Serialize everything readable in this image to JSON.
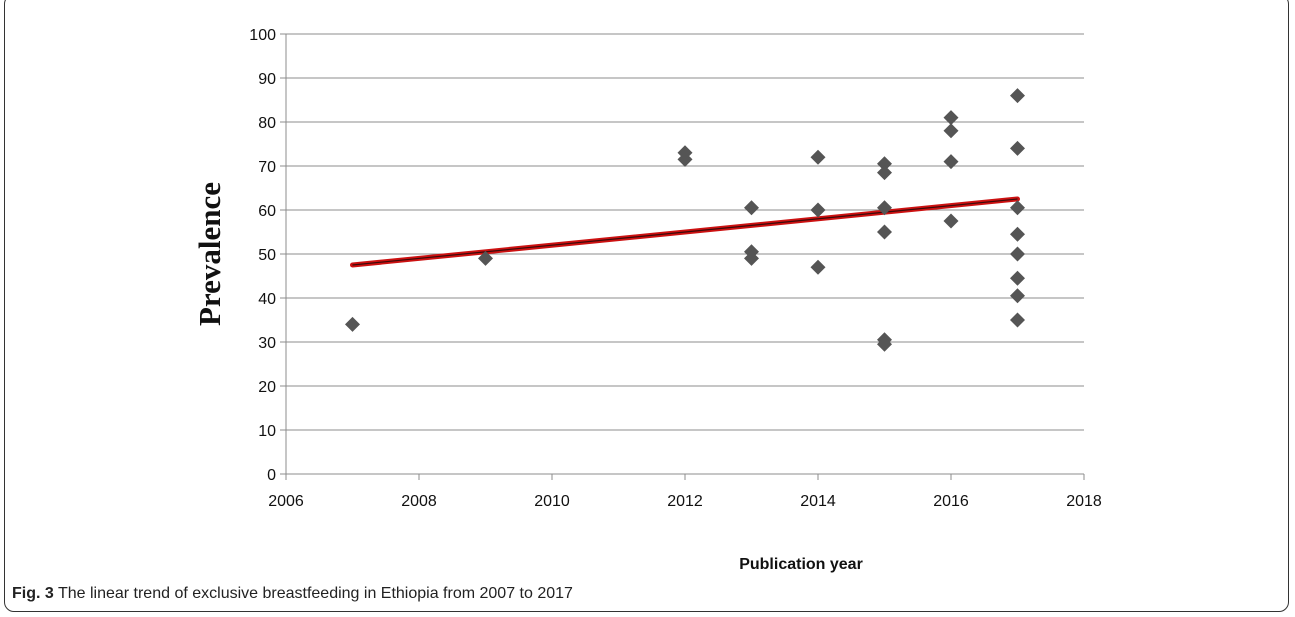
{
  "chart_data": {
    "type": "scatter",
    "xlabel": "Publication year",
    "ylabel": "Prevalence",
    "xlim": [
      2006,
      2018
    ],
    "ylim": [
      0,
      100
    ],
    "x_ticks": [
      2006,
      2008,
      2010,
      2012,
      2014,
      2016,
      2018
    ],
    "y_ticks": [
      0,
      10,
      20,
      30,
      40,
      50,
      60,
      70,
      80,
      90,
      100
    ],
    "grid": "horizontal",
    "legend": "none",
    "marker": "diamond",
    "marker_color": "#555555",
    "trendline_color": "#cc1111",
    "points": [
      {
        "x": 2007,
        "y": 34
      },
      {
        "x": 2009,
        "y": 49
      },
      {
        "x": 2012,
        "y": 73
      },
      {
        "x": 2012,
        "y": 71.5
      },
      {
        "x": 2013,
        "y": 60.5
      },
      {
        "x": 2013,
        "y": 50.5
      },
      {
        "x": 2013,
        "y": 49
      },
      {
        "x": 2014,
        "y": 72
      },
      {
        "x": 2014,
        "y": 60
      },
      {
        "x": 2014,
        "y": 47
      },
      {
        "x": 2015,
        "y": 70.5
      },
      {
        "x": 2015,
        "y": 68.5
      },
      {
        "x": 2015,
        "y": 60.5
      },
      {
        "x": 2015,
        "y": 55
      },
      {
        "x": 2015,
        "y": 30.5
      },
      {
        "x": 2015,
        "y": 29.5
      },
      {
        "x": 2016,
        "y": 81
      },
      {
        "x": 2016,
        "y": 78
      },
      {
        "x": 2016,
        "y": 71
      },
      {
        "x": 2016,
        "y": 57.5
      },
      {
        "x": 2017,
        "y": 86
      },
      {
        "x": 2017,
        "y": 74
      },
      {
        "x": 2017,
        "y": 60.5
      },
      {
        "x": 2017,
        "y": 54.5
      },
      {
        "x": 2017,
        "y": 50
      },
      {
        "x": 2017,
        "y": 44.5
      },
      {
        "x": 2017,
        "y": 40.5
      },
      {
        "x": 2017,
        "y": 35
      }
    ],
    "trendline": [
      {
        "x": 2007,
        "y": 47.5
      },
      {
        "x": 2017,
        "y": 62.5
      }
    ]
  },
  "caption": {
    "label": "Fig. 3",
    "text": " The linear trend of exclusive breastfeeding in Ethiopia from 2007 to 2017"
  }
}
